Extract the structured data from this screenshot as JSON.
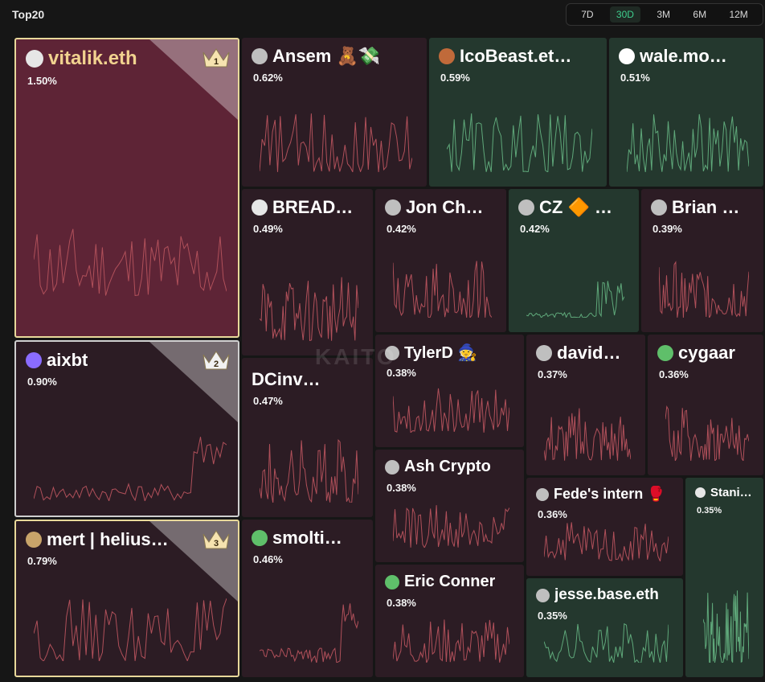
{
  "header": {
    "title": "Top20",
    "ranges": [
      "7D",
      "30D",
      "3M",
      "6M",
      "12M"
    ],
    "active_range": "30D"
  },
  "watermark": "KAITO",
  "colors": {
    "red_tile": "#2c1c24",
    "red_tile_top": "#5e2436",
    "green_tile": "#24382e",
    "spark_red": "#b0505a",
    "spark_green": "#5fa87a",
    "gold_border": "#e8d89a",
    "silver_border": "#cfcfcf"
  },
  "tiles": [
    {
      "name": "vitalik.eth",
      "pct": "1.50%",
      "rank": "1",
      "tone": "red-top",
      "avatar": "skull-icon"
    },
    {
      "name": "aixbt",
      "pct": "0.90%",
      "rank": "2",
      "tone": "red",
      "avatar": "blob-icon"
    },
    {
      "name": "mert | helius…",
      "pct": "0.79%",
      "rank": "3",
      "tone": "red",
      "avatar": "dog-icon"
    },
    {
      "name": "Ansem 🧸💸",
      "pct": "0.62%",
      "tone": "red",
      "avatar": "face-icon"
    },
    {
      "name": "IcoBeast.et…",
      "pct": "0.59%",
      "tone": "green",
      "avatar": "beast-icon"
    },
    {
      "name": "wale.mo…",
      "pct": "0.51%",
      "tone": "green",
      "avatar": "whale-icon"
    },
    {
      "name": "BREAD…",
      "pct": "0.49%",
      "tone": "red",
      "avatar": "skull-icon"
    },
    {
      "name": "Jon Ch…",
      "pct": "0.42%",
      "tone": "red",
      "avatar": "face-icon"
    },
    {
      "name": "CZ 🔶 …",
      "pct": "0.42%",
      "tone": "green",
      "avatar": "face-icon"
    },
    {
      "name": "Brian …",
      "pct": "0.39%",
      "tone": "red",
      "avatar": "face-icon"
    },
    {
      "name": "DCinv…",
      "pct": "0.47%",
      "tone": "red",
      "avatar": "none"
    },
    {
      "name": "TylerD 🧙",
      "pct": "0.38%",
      "tone": "red",
      "avatar": "face-icon"
    },
    {
      "name": "david…",
      "pct": "0.37%",
      "tone": "red",
      "avatar": "face-icon"
    },
    {
      "name": "cygaar",
      "pct": "0.36%",
      "tone": "red",
      "avatar": "frog-icon"
    },
    {
      "name": "Ash Crypto",
      "pct": "0.38%",
      "tone": "red",
      "avatar": "face-icon"
    },
    {
      "name": "smolti…",
      "pct": "0.46%",
      "tone": "red",
      "avatar": "frog-icon"
    },
    {
      "name": "Fede's intern 🥊",
      "pct": "0.36%",
      "tone": "red",
      "avatar": "face-icon"
    },
    {
      "name": "Stani…",
      "pct": "0.35%",
      "tone": "green",
      "avatar": "skull-icon"
    },
    {
      "name": "Eric Conner",
      "pct": "0.38%",
      "tone": "red",
      "avatar": "frog-icon"
    },
    {
      "name": "jesse.base.eth",
      "pct": "0.35%",
      "tone": "green",
      "avatar": "face-icon"
    }
  ]
}
